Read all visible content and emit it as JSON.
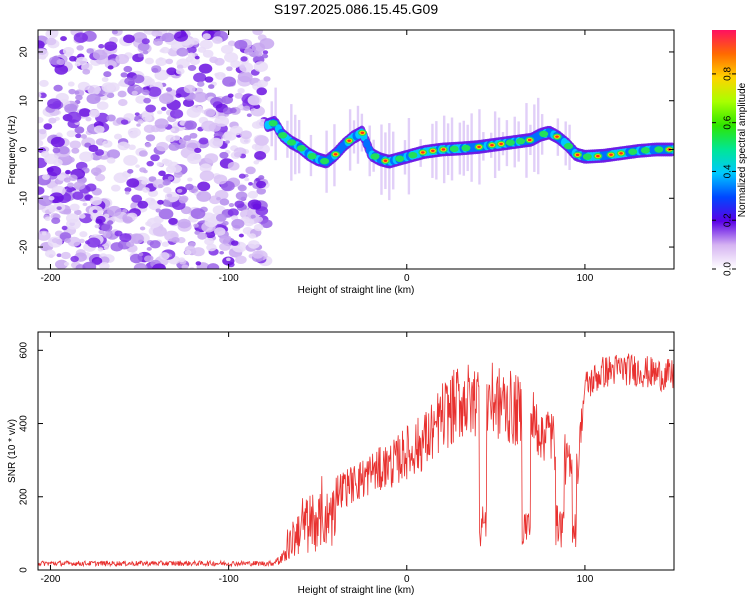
{
  "title": "S197.2025.086.15.45.G09",
  "chart_data": [
    {
      "type": "heatmap",
      "name": "spectrogram",
      "xlabel": "Height of straight line (km)",
      "ylabel": "Frequency (Hz)",
      "xlim": [
        -207,
        150
      ],
      "ylim": [
        -24.5,
        24.5
      ],
      "xticks": [
        -200,
        -100,
        0,
        100
      ],
      "yticks": [
        -20,
        -10,
        0,
        10,
        20
      ],
      "colorbar": {
        "label": "Normalized spectral amplitude",
        "range": [
          0,
          0.98
        ],
        "ticks": [
          0.0,
          0.2,
          0.4,
          0.6,
          0.8
        ]
      },
      "noise_region_x": [
        -207,
        -78
      ],
      "ridge": {
        "x": [
          -78,
          -74,
          -70,
          -65,
          -60,
          -55,
          -50,
          -45,
          -40,
          -35,
          -30,
          -25,
          -20,
          -15,
          -10,
          -5,
          0,
          10,
          20,
          30,
          40,
          50,
          60,
          70,
          75,
          80,
          85,
          90,
          95,
          100,
          110,
          120,
          130,
          140,
          150
        ],
        "freq": [
          5.0,
          5.5,
          3.0,
          1.5,
          0.5,
          -1.0,
          -2.0,
          -2.5,
          -1.0,
          1.0,
          2.5,
          3.5,
          -1.0,
          -2.0,
          -2.5,
          -2.0,
          -1.5,
          -0.5,
          0.0,
          0.2,
          0.5,
          1.0,
          1.5,
          2.0,
          3.0,
          3.5,
          2.5,
          1.0,
          -1.0,
          -1.5,
          -1.3,
          -0.8,
          -0.3,
          0.0,
          0.0
        ]
      }
    },
    {
      "type": "line",
      "name": "snr",
      "xlabel": "Height of straight line (km)",
      "ylabel": "SNR (10 * v/v)",
      "xlim": [
        -207,
        150
      ],
      "ylim": [
        0,
        650
      ],
      "xticks": [
        -200,
        -100,
        0,
        100
      ],
      "yticks": [
        0,
        200,
        400,
        600
      ],
      "color": "#e8312f",
      "series": [
        {
          "name": "SNR",
          "x": [
            -207,
            -150,
            -100,
            -75,
            -70,
            -65,
            -60,
            -50,
            -40,
            -30,
            -20,
            -10,
            0,
            10,
            20,
            30,
            40,
            50,
            60,
            70,
            80,
            90,
            95,
            100,
            110,
            120,
            130,
            140,
            150
          ],
          "values": [
            18,
            18,
            18,
            18,
            40,
            110,
            160,
            180,
            220,
            240,
            270,
            290,
            330,
            360,
            430,
            470,
            480,
            470,
            450,
            420,
            380,
            300,
            250,
            500,
            540,
            550,
            545,
            535,
            530
          ]
        }
      ]
    }
  ]
}
